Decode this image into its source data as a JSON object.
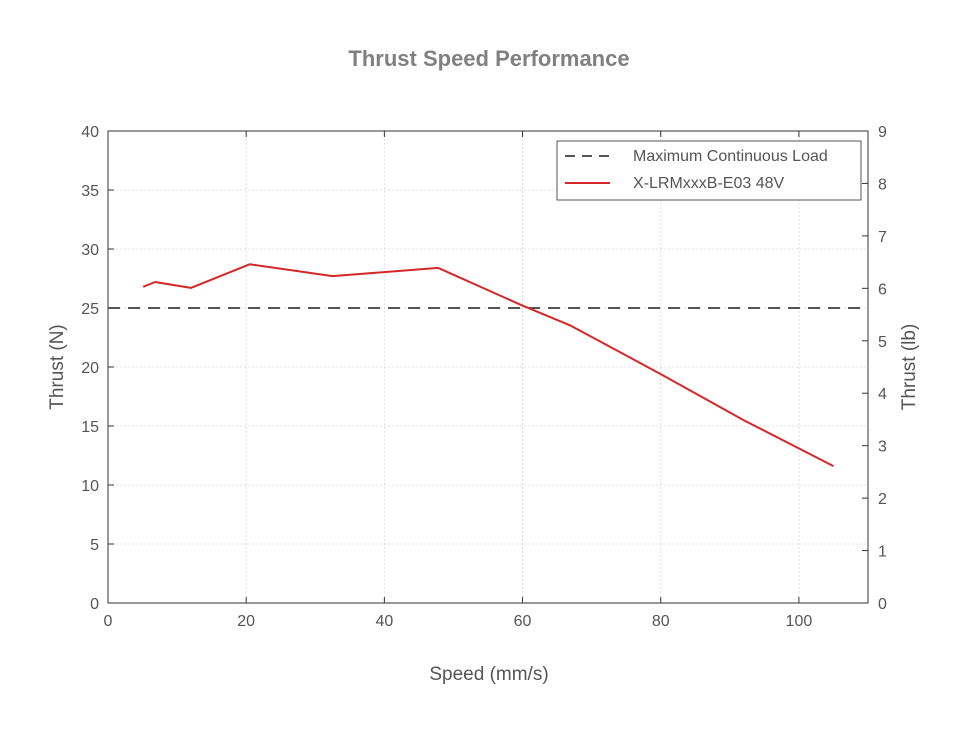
{
  "chart_data": {
    "type": "line",
    "title": "Thrust Speed Performance",
    "xlabel": "Speed (mm/s)",
    "ylabel": "Thrust (N)",
    "ylabel_right": "Thrust (lb)",
    "xlim": [
      0,
      110
    ],
    "ylim": [
      0,
      40
    ],
    "ylim_right": [
      0,
      9
    ],
    "x_ticks": [
      0,
      20,
      40,
      60,
      80,
      100
    ],
    "y_ticks": [
      0,
      5,
      10,
      15,
      20,
      25,
      30,
      35,
      40
    ],
    "y_ticks_right": [
      0,
      1,
      2,
      3,
      4,
      5,
      6,
      7,
      8,
      9
    ],
    "grid": true,
    "legend_position": "top-right",
    "series": [
      {
        "name": "Maximum Continuous Load",
        "style": "dashed",
        "color": "#555555",
        "x": [
          0,
          110
        ],
        "y": [
          25,
          25
        ]
      },
      {
        "name": "X-LRMxxxB-E03 48V",
        "style": "solid",
        "color": "#d62728",
        "x": [
          5.1,
          6.8,
          12,
          20.5,
          32.5,
          47.8,
          60,
          67,
          80,
          92,
          105
        ],
        "y": [
          26.8,
          27.2,
          26.7,
          28.7,
          27.7,
          28.4,
          25.2,
          23.5,
          19.4,
          15.5,
          11.6
        ]
      }
    ]
  }
}
